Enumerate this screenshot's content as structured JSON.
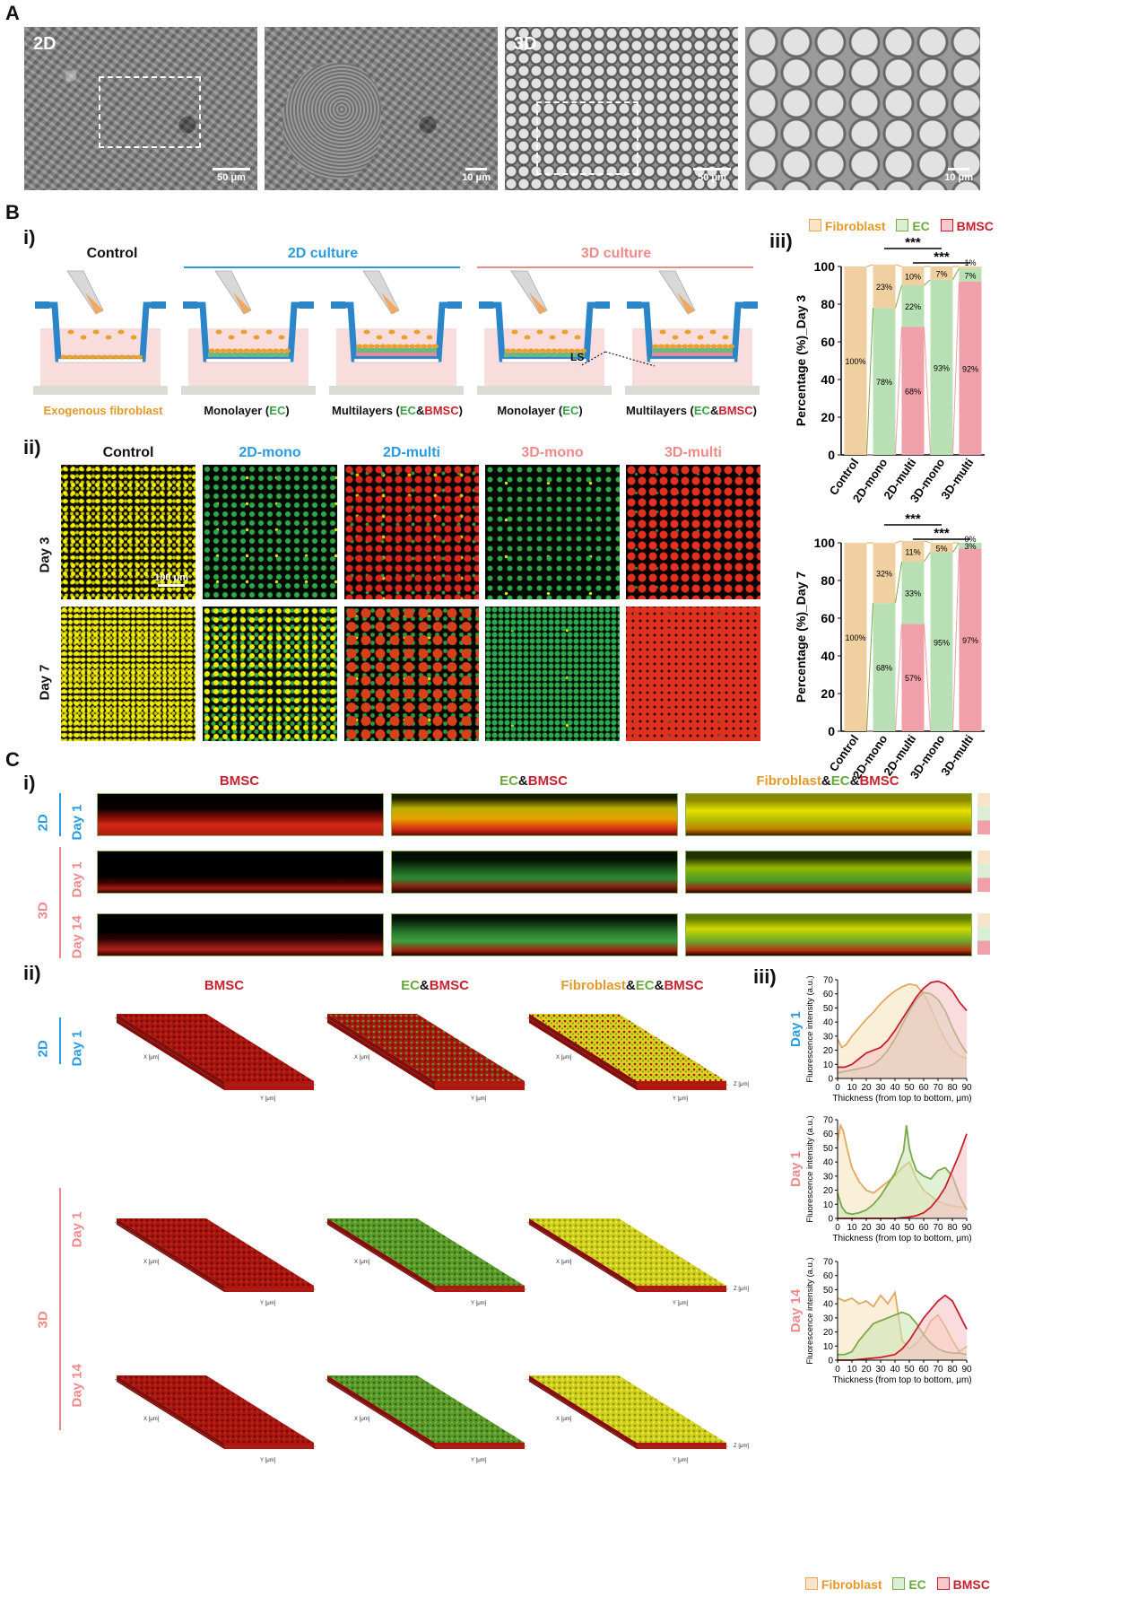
{
  "panels": {
    "A": {
      "letter": "A",
      "tiles": [
        {
          "label": "2D",
          "scale": "50 μm"
        },
        {
          "label": "",
          "scale": "10 μm"
        },
        {
          "label": "3D",
          "scale": "50 μm"
        },
        {
          "label": "",
          "scale": "10 μm"
        }
      ]
    },
    "B": {
      "letter": "B",
      "sub_i": "i)",
      "sub_ii": "ii)",
      "sub_iii": "iii)",
      "schematic": {
        "control_title": "Control",
        "culture2d_title": "2D culture",
        "culture3d_title": "3D culture",
        "ls_label": "LS",
        "captions": [
          {
            "plain": "Exogenous fibroblast",
            "color": "#e29a2a"
          },
          {
            "pre": "Monolayer (",
            "ec": "EC",
            "post": ")"
          },
          {
            "pre": "Multilayers (",
            "ec": "EC",
            "amp": "&",
            "bm": "BMSC",
            "post": ")"
          },
          {
            "pre": "Monolayer (",
            "ec": "EC",
            "post": ")"
          },
          {
            "pre": "Multilayers (",
            "ec": "EC",
            "amp": "&",
            "bm": "BMSC",
            "post": ")"
          }
        ]
      },
      "fluor": {
        "columns": [
          "Control",
          "2D-mono",
          "2D-multi",
          "3D-mono",
          "3D-multi"
        ],
        "column_colors": [
          "#111111",
          "#2a9be0",
          "#2a9be0",
          "#f08a8a",
          "#f08a8a"
        ],
        "rows": [
          "Day 3",
          "Day 7"
        ],
        "scale": "100 μm"
      },
      "legend": {
        "fibroblast": "Fibroblast",
        "ec": "EC",
        "bmsc": "BMSC"
      }
    },
    "C": {
      "letter": "C",
      "sub_i": "i)",
      "sub_ii": "ii)",
      "sub_iii": "iii)",
      "titles": {
        "bmsc": "BMSC",
        "ec": "EC",
        "amp": "&",
        "fib": "Fibroblast"
      },
      "row_labels": {
        "d2": "2D",
        "d3": "3D",
        "day1": "Day 1",
        "day14": "Day 14"
      },
      "axis3d": {
        "x": "X [μm]",
        "y": "Y [μm]",
        "z": "Z [μm]"
      },
      "bottom_legend": {
        "fibroblast": "Fibroblast",
        "ec": "EC",
        "bmsc": "BMSC"
      }
    }
  },
  "colors": {
    "fibroblast": "#f0cfa0",
    "fibroblast_line": "#e0a860",
    "ec": "#b8e0b4",
    "ec_line": "#7aa84a",
    "bmsc": "#f0a0a8",
    "bmsc_line": "#c8202e",
    "bmsc_text": "#c8202e",
    "ec_text": "#6aa83a",
    "fib_text": "#e29a2a",
    "blue": "#2a9be0",
    "pink": "#f08a8a"
  },
  "chart_data": [
    {
      "type": "bar",
      "id": "day3",
      "stacked": true,
      "ylabel": "Percentage (%)_Day 3",
      "ylim": [
        0,
        100
      ],
      "yticks": [
        0,
        20,
        40,
        60,
        80,
        100
      ],
      "categories": [
        "Control",
        "2D-mono",
        "2D-multi",
        "3D-mono",
        "3D-multi"
      ],
      "series": [
        {
          "name": "BMSC",
          "values": [
            0,
            0,
            68,
            0,
            92
          ],
          "labels": [
            "0%",
            "0%",
            "68%",
            "0%",
            "92%"
          ]
        },
        {
          "name": "EC",
          "values": [
            0,
            78,
            22,
            93,
            7
          ],
          "labels": [
            "",
            "78%",
            "22%",
            "93%",
            "7%"
          ]
        },
        {
          "name": "Fibroblast",
          "values": [
            100,
            23,
            10,
            7,
            1
          ],
          "labels": [
            "100%",
            "23%",
            "10%",
            "7%",
            "1%"
          ]
        }
      ],
      "significance": [
        {
          "from": "2D-mono",
          "to": "3D-mono",
          "label": "***"
        },
        {
          "from": "2D-multi",
          "to": "3D-multi",
          "label": "***"
        }
      ]
    },
    {
      "type": "bar",
      "id": "day7",
      "stacked": true,
      "ylabel": "Percentage (%)_Day 7",
      "ylim": [
        0,
        100
      ],
      "yticks": [
        0,
        20,
        40,
        60,
        80,
        100
      ],
      "categories": [
        "Control",
        "2D-mono",
        "2D-multi",
        "3D-mono",
        "3D-multi"
      ],
      "series": [
        {
          "name": "BMSC",
          "values": [
            0,
            0,
            57,
            0,
            97
          ],
          "labels": [
            "0%",
            "0%",
            "57%",
            "0%",
            "97%"
          ]
        },
        {
          "name": "EC",
          "values": [
            0,
            68,
            33,
            95,
            3
          ],
          "labels": [
            "",
            "68%",
            "33%",
            "95%",
            "3%"
          ]
        },
        {
          "name": "Fibroblast",
          "values": [
            100,
            32,
            11,
            5,
            0
          ],
          "labels": [
            "100%",
            "32%",
            "11%",
            "5%",
            "0%"
          ]
        }
      ],
      "significance": [
        {
          "from": "2D-mono",
          "to": "3D-mono",
          "label": "***"
        },
        {
          "from": "2D-multi",
          "to": "3D-multi",
          "label": "***"
        }
      ]
    },
    {
      "type": "area",
      "id": "2d-day1",
      "row_title": "Day 1",
      "row_color": "#2a9be0",
      "xlabel": "Thickness (from top to bottom, μm)",
      "ylabel": "Fluorescence intensity (a.u.)",
      "xlim": [
        0,
        90
      ],
      "ylim": [
        0,
        70
      ],
      "xticks": [
        0,
        10,
        20,
        30,
        40,
        50,
        60,
        70,
        80,
        90
      ],
      "yticks": [
        0,
        10,
        20,
        30,
        40,
        50,
        60,
        70
      ],
      "series": [
        {
          "name": "Fibroblast",
          "x": [
            0,
            3,
            6,
            10,
            15,
            20,
            25,
            30,
            35,
            40,
            45,
            50,
            55,
            60,
            65,
            70,
            75,
            80,
            85,
            90
          ],
          "y": [
            28,
            22,
            24,
            30,
            36,
            42,
            47,
            53,
            58,
            62,
            65,
            67,
            66,
            60,
            50,
            38,
            28,
            20,
            16,
            14
          ]
        },
        {
          "name": "EC",
          "x": [
            0,
            5,
            10,
            15,
            20,
            25,
            30,
            35,
            40,
            45,
            50,
            55,
            60,
            65,
            70,
            75,
            80,
            85,
            90
          ],
          "y": [
            4,
            5,
            6,
            7,
            8,
            10,
            14,
            20,
            28,
            38,
            48,
            56,
            61,
            60,
            56,
            48,
            36,
            26,
            18
          ]
        },
        {
          "name": "BMSC",
          "x": [
            0,
            5,
            10,
            15,
            20,
            25,
            30,
            35,
            40,
            45,
            50,
            55,
            60,
            65,
            70,
            75,
            80,
            85,
            90
          ],
          "y": [
            8,
            8,
            10,
            14,
            18,
            20,
            22,
            27,
            34,
            42,
            50,
            58,
            64,
            68,
            69,
            67,
            62,
            54,
            48
          ]
        }
      ]
    },
    {
      "type": "area",
      "id": "3d-day1",
      "row_title": "Day 1",
      "row_color": "#f08a8a",
      "xlabel": "Thickness (from top to bottom, μm)",
      "ylabel": "Fluorescence intensity (a.u.)",
      "xlim": [
        0,
        90
      ],
      "ylim": [
        0,
        70
      ],
      "xticks": [
        0,
        10,
        20,
        30,
        40,
        50,
        60,
        70,
        80,
        90
      ],
      "yticks": [
        0,
        10,
        20,
        30,
        40,
        50,
        60,
        70
      ],
      "series": [
        {
          "name": "Fibroblast",
          "x": [
            0,
            2,
            4,
            7,
            10,
            15,
            20,
            25,
            30,
            35,
            40,
            45,
            50,
            55,
            60,
            65,
            70,
            75,
            80,
            85,
            90
          ],
          "y": [
            55,
            66,
            62,
            48,
            36,
            26,
            20,
            18,
            22,
            26,
            30,
            36,
            40,
            28,
            20,
            16,
            12,
            10,
            9,
            8,
            8
          ]
        },
        {
          "name": "EC",
          "x": [
            0,
            3,
            6,
            10,
            15,
            20,
            25,
            30,
            35,
            40,
            43,
            46,
            48,
            50,
            52,
            55,
            60,
            65,
            70,
            75,
            80,
            85,
            90
          ],
          "y": [
            18,
            8,
            4,
            3,
            4,
            6,
            10,
            16,
            24,
            32,
            40,
            48,
            66,
            50,
            42,
            34,
            30,
            28,
            34,
            36,
            30,
            16,
            6
          ]
        },
        {
          "name": "BMSC",
          "x": [
            0,
            10,
            20,
            30,
            40,
            50,
            55,
            60,
            65,
            70,
            75,
            80,
            85,
            90
          ],
          "y": [
            0,
            0,
            0,
            0,
            0,
            1,
            2,
            4,
            8,
            14,
            22,
            34,
            46,
            60
          ]
        }
      ]
    },
    {
      "type": "area",
      "id": "3d-day14",
      "row_title": "Day 14",
      "row_color": "#f08a8a",
      "xlabel": "Thickness (from top to bottom, μm)",
      "ylabel": "Fluorescence intensity (a.u.)",
      "xlim": [
        0,
        90
      ],
      "ylim": [
        0,
        70
      ],
      "xticks": [
        0,
        10,
        20,
        30,
        40,
        50,
        60,
        70,
        80,
        90
      ],
      "yticks": [
        0,
        10,
        20,
        30,
        40,
        50,
        60,
        70
      ],
      "series": [
        {
          "name": "Fibroblast",
          "x": [
            0,
            5,
            10,
            15,
            20,
            25,
            30,
            35,
            40,
            45,
            50,
            55,
            60,
            65,
            70,
            75,
            80,
            85,
            90
          ],
          "y": [
            44,
            42,
            44,
            40,
            42,
            38,
            46,
            40,
            48,
            14,
            8,
            12,
            18,
            28,
            32,
            24,
            14,
            6,
            10
          ]
        },
        {
          "name": "EC",
          "x": [
            0,
            5,
            10,
            15,
            20,
            25,
            30,
            35,
            40,
            45,
            50,
            55,
            60,
            65,
            70,
            75,
            80,
            85,
            90
          ],
          "y": [
            4,
            4,
            6,
            14,
            20,
            26,
            28,
            30,
            32,
            34,
            32,
            26,
            18,
            12,
            8,
            6,
            5,
            5,
            4
          ]
        },
        {
          "name": "BMSC",
          "x": [
            0,
            10,
            20,
            30,
            40,
            45,
            50,
            55,
            60,
            65,
            70,
            75,
            80,
            85,
            90
          ],
          "y": [
            0,
            0,
            1,
            2,
            4,
            8,
            14,
            22,
            30,
            36,
            42,
            46,
            42,
            32,
            22
          ]
        }
      ]
    }
  ]
}
